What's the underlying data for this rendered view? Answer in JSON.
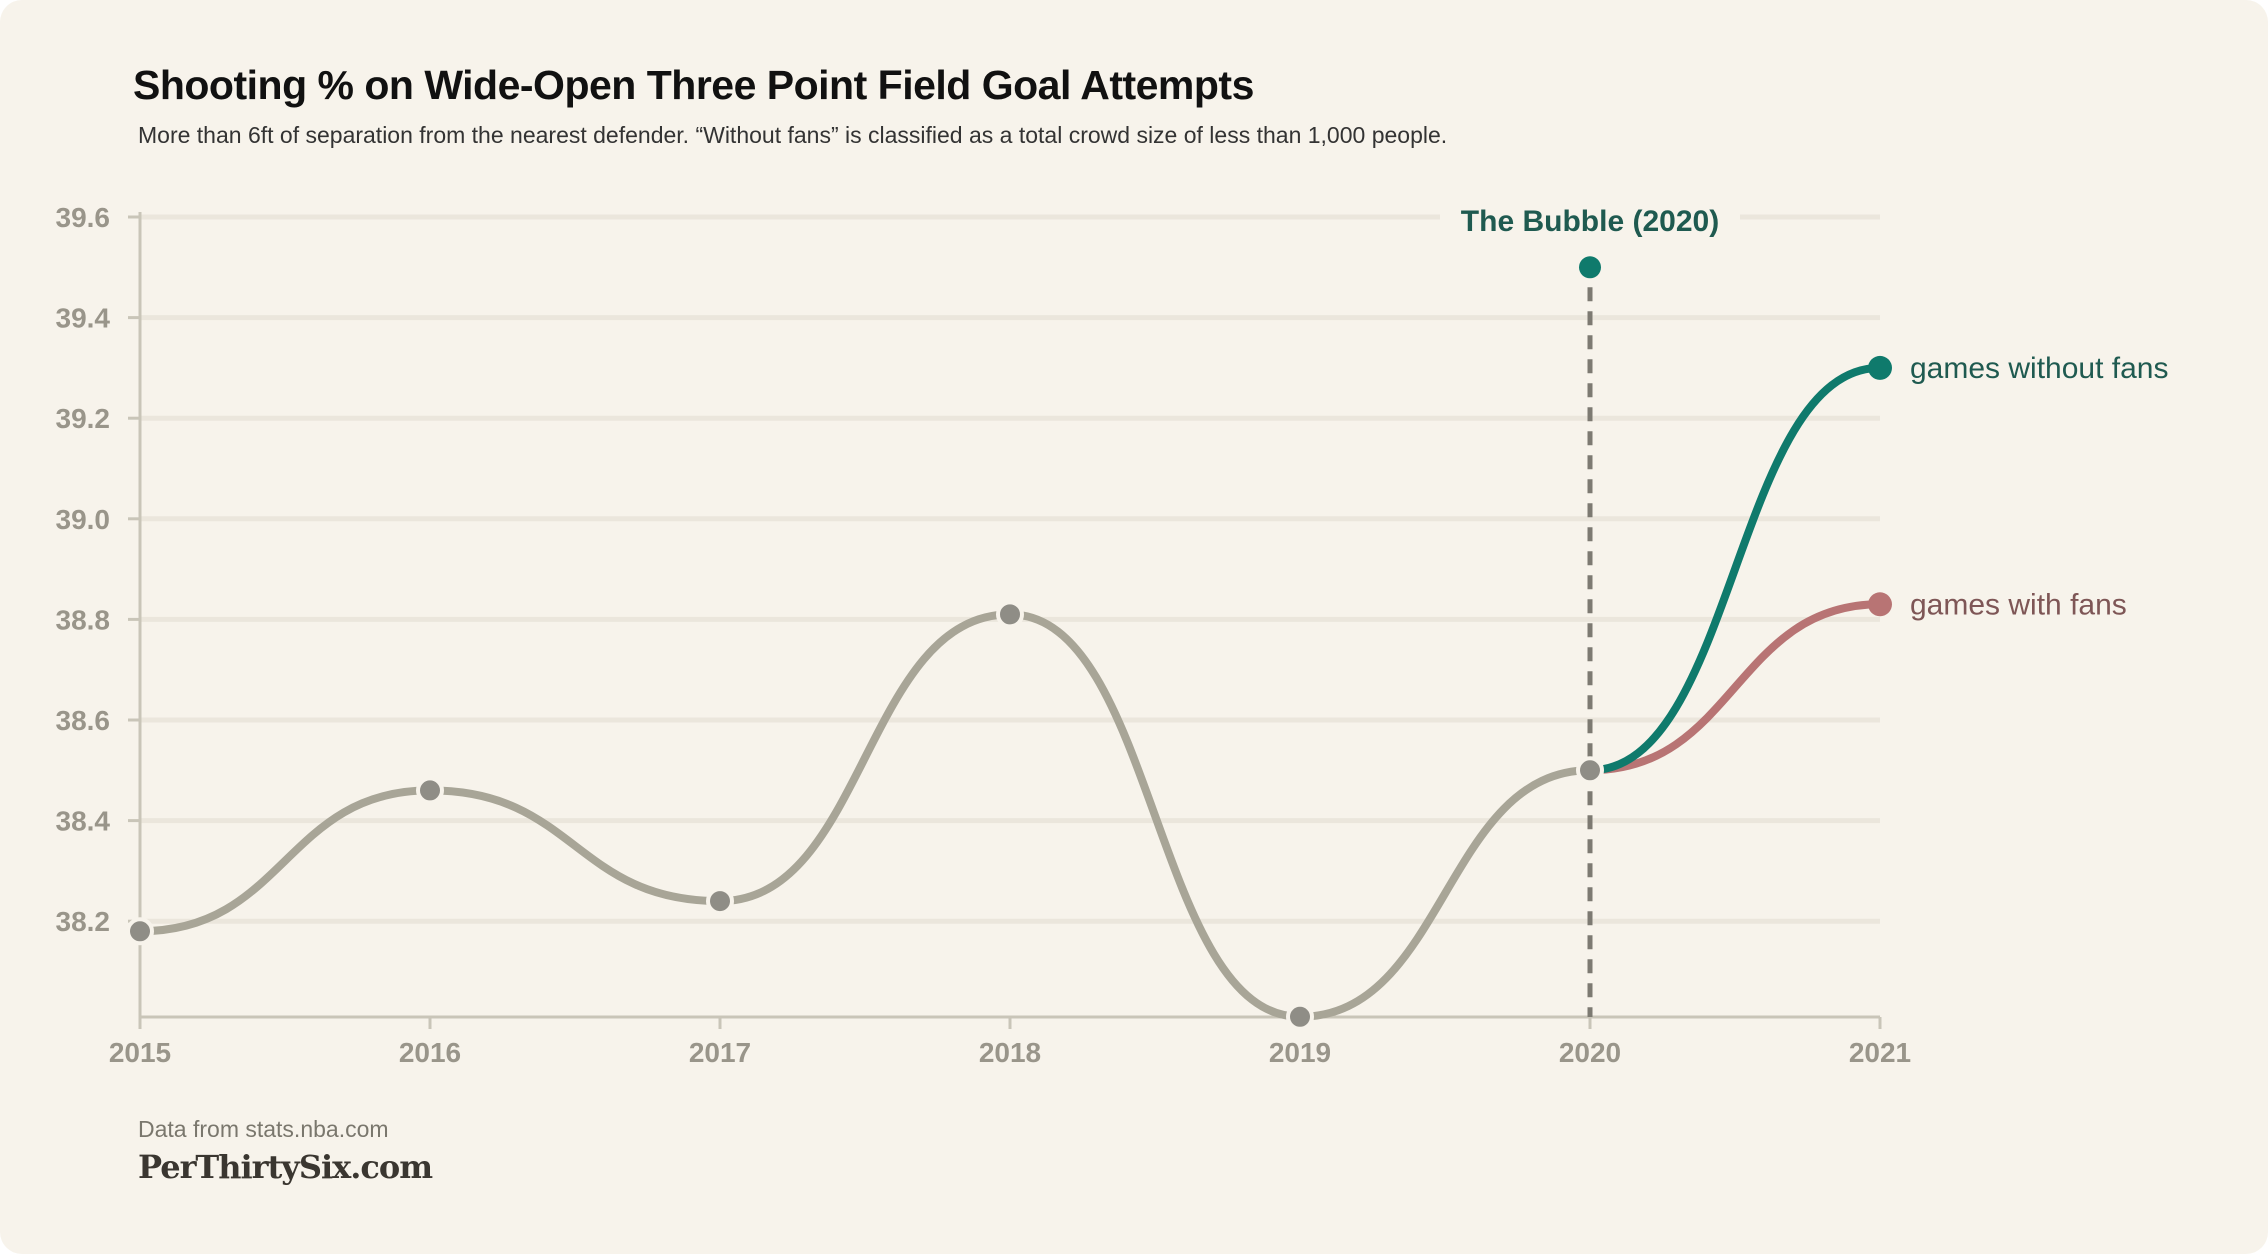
{
  "chart_data": {
    "type": "line",
    "title": "Shooting % on Wide-Open Three Point Field Goal Attempts",
    "subtitle": "More than 6ft of separation from the nearest defender. “Without fans” is classified as a total crowd size of less than 1,000 people.",
    "xlabel": "",
    "ylabel": "",
    "x_ticks": [
      "2015",
      "2016",
      "2017",
      "2018",
      "2019",
      "2020",
      "2021"
    ],
    "y_ticks": [
      "38.2",
      "38.4",
      "38.6",
      "38.8",
      "39.0",
      "39.2",
      "39.4",
      "39.6"
    ],
    "xlim": [
      2015,
      2021
    ],
    "ylim": [
      38.01,
      39.6
    ],
    "grid": true,
    "series": [
      {
        "name": "",
        "color": "#a8a597",
        "points": [
          [
            2015,
            38.18
          ],
          [
            2016,
            38.46
          ],
          [
            2017,
            38.24
          ],
          [
            2018,
            38.81
          ],
          [
            2019,
            38.01
          ],
          [
            2020,
            38.5
          ]
        ]
      },
      {
        "name": "games without fans",
        "color": "#0f7a6c",
        "label_color": "#1f5a50",
        "points": [
          [
            2020,
            38.5
          ],
          [
            2021,
            39.3
          ]
        ]
      },
      {
        "name": "games with fans",
        "color": "#b87474",
        "label_color": "#7e5656",
        "points": [
          [
            2020,
            38.5
          ],
          [
            2021,
            38.83
          ]
        ]
      }
    ],
    "annotation": {
      "label": "The Bubble (2020)",
      "x": 2020,
      "y": 39.5,
      "color": "#0f7a6c",
      "label_color": "#1f5a50"
    }
  },
  "footer": {
    "source": "Data from stats.nba.com",
    "brand": "PerThirtySix.com"
  }
}
